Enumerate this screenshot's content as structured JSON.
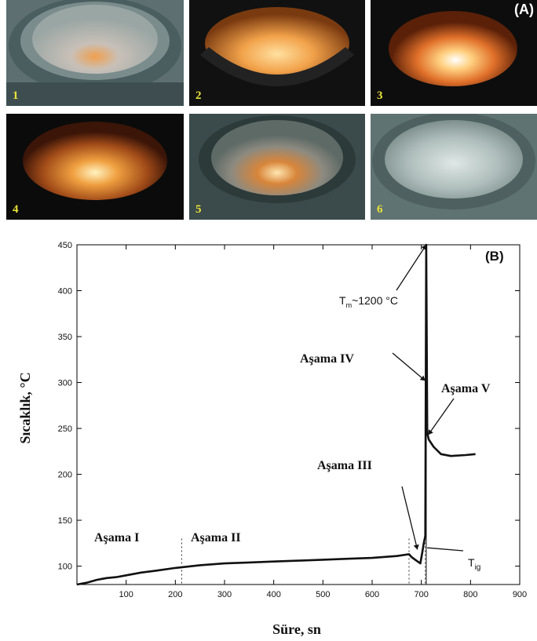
{
  "photos": {
    "panel_tag": "(A)",
    "tiles": [
      {
        "label": "1"
      },
      {
        "label": "2"
      },
      {
        "label": "3"
      },
      {
        "label": "4"
      },
      {
        "label": "5"
      },
      {
        "label": "6"
      }
    ]
  },
  "chart_data": {
    "type": "line",
    "panel_tag": "(B)",
    "xlabel": "Süre, sn",
    "ylabel": "Sıcaklık, °C",
    "xlim": [
      0,
      900
    ],
    "ylim": [
      80,
      450
    ],
    "xticks": [
      100,
      200,
      300,
      400,
      500,
      600,
      700,
      800,
      900
    ],
    "yticks": [
      100,
      150,
      200,
      250,
      300,
      350,
      400,
      450
    ],
    "series": [
      {
        "values_xy": [
          [
            0,
            80
          ],
          [
            20,
            82
          ],
          [
            40,
            85
          ],
          [
            60,
            87
          ],
          [
            80,
            88
          ],
          [
            100,
            90
          ],
          [
            130,
            93
          ],
          [
            160,
            95
          ],
          [
            200,
            98
          ],
          [
            250,
            101
          ],
          [
            300,
            103
          ],
          [
            350,
            104
          ],
          [
            400,
            105
          ],
          [
            450,
            106
          ],
          [
            500,
            107
          ],
          [
            550,
            108
          ],
          [
            600,
            109
          ],
          [
            650,
            111
          ],
          [
            675,
            113
          ],
          [
            680,
            110
          ],
          [
            690,
            106
          ],
          [
            698,
            103
          ],
          [
            702,
            115
          ],
          [
            705,
            125
          ],
          [
            708,
            133
          ],
          [
            710,
            450
          ],
          [
            712,
            245
          ],
          [
            715,
            238
          ],
          [
            725,
            230
          ],
          [
            740,
            222
          ],
          [
            760,
            220
          ],
          [
            790,
            221
          ],
          [
            810,
            222
          ]
        ]
      }
    ],
    "vertical_lines": [
      {
        "x": 213,
        "style": "dotted"
      },
      {
        "x": 675,
        "style": "dotted"
      },
      {
        "x": 708,
        "style": "dotted"
      },
      {
        "x": 710,
        "style": "solid"
      }
    ],
    "annotations": [
      {
        "id": "asama1",
        "text": "Aşama I"
      },
      {
        "id": "asama2",
        "text": "Aşama II"
      },
      {
        "id": "asama3",
        "text": "Aşama III"
      },
      {
        "id": "asama4",
        "text": "Aşama IV"
      },
      {
        "id": "asama5",
        "text": "Aşama V"
      },
      {
        "id": "tm_main",
        "text": "T"
      },
      {
        "id": "tm_sub",
        "text": "m"
      },
      {
        "id": "tm_val",
        "text": "~1200 °C"
      },
      {
        "id": "tig_main",
        "text": "T"
      },
      {
        "id": "tig_sub",
        "text": "ig"
      }
    ]
  }
}
